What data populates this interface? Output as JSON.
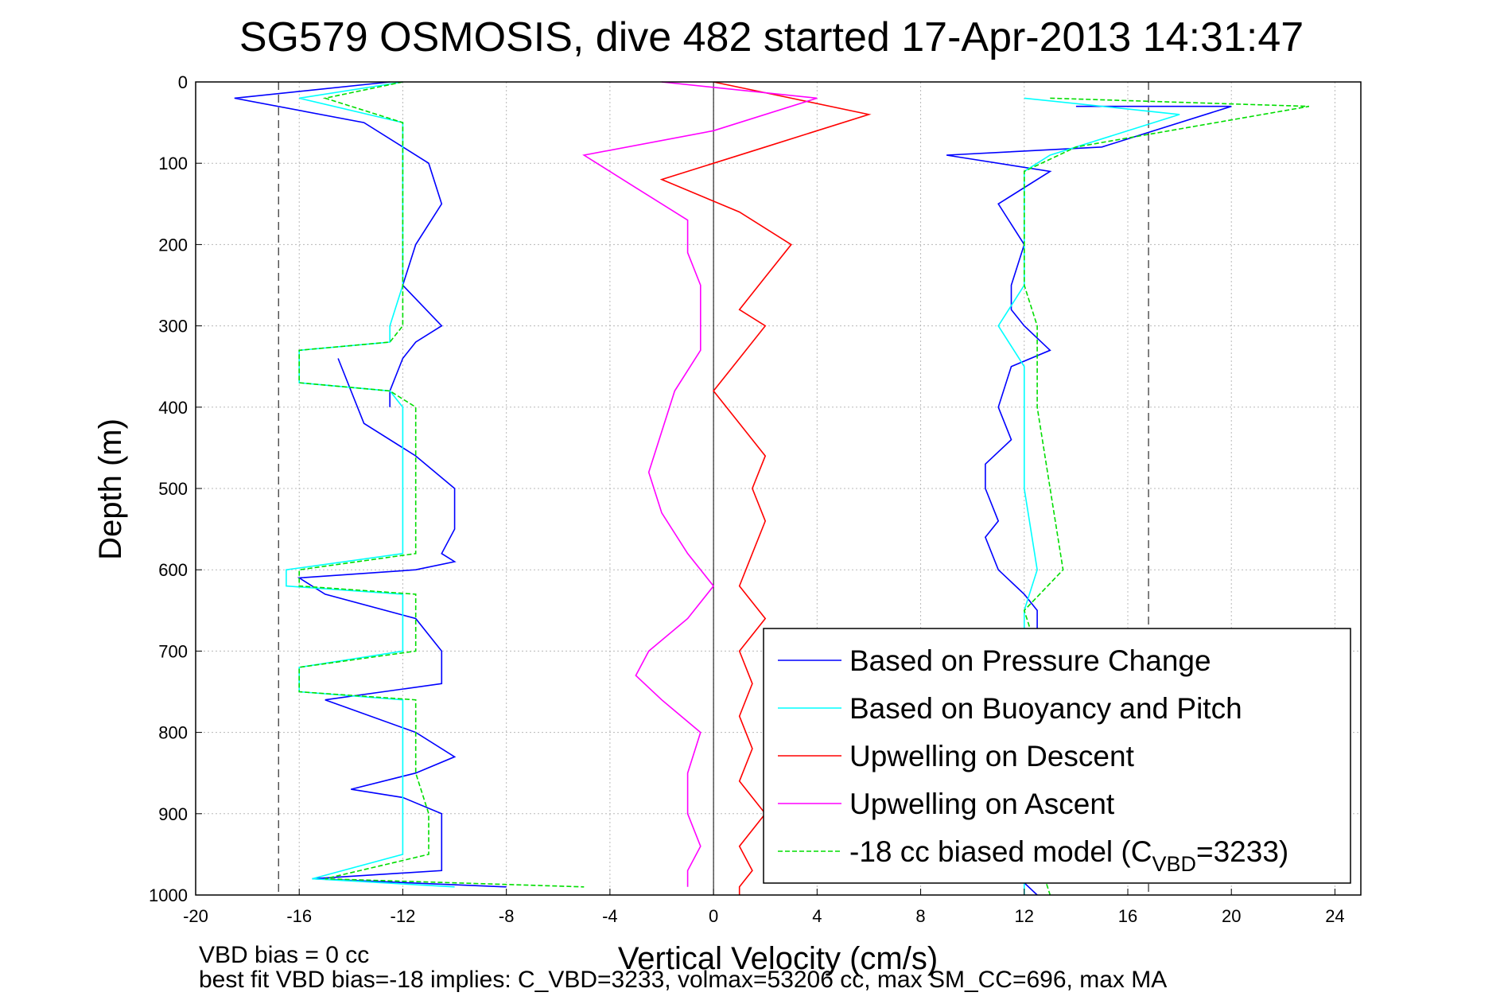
{
  "chart_data": {
    "type": "line",
    "title": "SG579 OSMOSIS, dive 482 started 17-Apr-2013 14:31:47",
    "xlabel": "Vertical Velocity (cm/s)",
    "ylabel": "Depth (m)",
    "xlim": [
      -20,
      25
    ],
    "ylim": [
      0,
      1000
    ],
    "y_reversed": true,
    "grid": true,
    "x_ticks": [
      -20,
      -16,
      -12,
      -8,
      -4,
      0,
      4,
      8,
      12,
      16,
      20,
      24
    ],
    "y_ticks": [
      0,
      100,
      200,
      300,
      400,
      500,
      600,
      700,
      800,
      900,
      1000
    ],
    "reference_lines_x": [
      -16.8,
      0,
      16.8
    ],
    "legend_position": "bottom-right",
    "legend": [
      {
        "text": "Based on Pressure Change",
        "color": "#0000ff",
        "dashed": false
      },
      {
        "text": "Based on Buoyancy and Pitch",
        "color": "#00ffff",
        "dashed": false
      },
      {
        "text": "Upwelling on Descent",
        "color": "#ff0000",
        "dashed": false
      },
      {
        "text": "Upwelling on Ascent",
        "color": "#ff00ff",
        "dashed": false
      },
      {
        "text": "-18 cc biased model (C",
        "sub": "VBD",
        "tail": "=3233)",
        "color": "#00dd00",
        "dashed": true
      }
    ],
    "series": [
      {
        "name": "Based on Pressure Change",
        "color": "#0000ff",
        "dashed": false,
        "x": [
          -12.5,
          -18.5,
          -13.5,
          -11,
          -10.5,
          -11.5,
          -12,
          -10.5,
          -11.5,
          -12,
          -12.5,
          -12.5,
          -14.5,
          -13.5,
          -11.5,
          -10,
          -10,
          -10.5,
          -10,
          -11.5,
          -16,
          -15,
          -11.5,
          -10.5,
          -10.5,
          -10.5,
          -15,
          -11.5,
          -10,
          -11.5,
          -14,
          -12,
          -10.5,
          -10.5,
          -10.5,
          -15.5,
          -8,
          14,
          20,
          15,
          9,
          13,
          11,
          12,
          11.5,
          11.5,
          12,
          13,
          11.5,
          11,
          11.5,
          10.5,
          10.5,
          11,
          10.5,
          11,
          12,
          12.5,
          12.5,
          12,
          12,
          12.5,
          12,
          12,
          12,
          12,
          12,
          12.5
        ],
        "y": [
          0,
          20,
          50,
          100,
          150,
          200,
          250,
          300,
          320,
          340,
          380,
          400,
          340,
          420,
          460,
          500,
          550,
          580,
          590,
          600,
          610,
          630,
          660,
          700,
          720,
          740,
          760,
          800,
          830,
          850,
          870,
          880,
          900,
          940,
          970,
          980,
          990,
          30,
          30,
          80,
          90,
          110,
          150,
          200,
          250,
          280,
          300,
          330,
          350,
          400,
          440,
          470,
          500,
          540,
          560,
          600,
          630,
          650,
          700,
          750,
          800,
          850,
          880,
          920,
          950,
          970,
          985,
          1000
        ]
      },
      {
        "name": "Based on Buoyancy and Pitch",
        "color": "#00ffff",
        "dashed": false,
        "x": [
          -12,
          -16,
          -12,
          -12,
          -12,
          -12,
          -12.5,
          -12.5,
          -16,
          -16,
          -12.5,
          -12,
          -12,
          -12,
          -12,
          -12,
          -16.5,
          -16.5,
          -12,
          -12,
          -12,
          -16,
          -16,
          -12,
          -12,
          -12,
          -12,
          -12,
          -15.5,
          -10,
          12,
          18,
          13,
          12,
          12,
          12,
          12,
          11,
          12,
          12,
          12,
          12.5,
          12,
          12,
          12,
          12,
          12,
          12
        ],
        "y": [
          0,
          20,
          50,
          100,
          200,
          250,
          300,
          320,
          330,
          370,
          380,
          400,
          450,
          500,
          550,
          580,
          600,
          620,
          630,
          650,
          700,
          720,
          750,
          760,
          800,
          850,
          900,
          950,
          980,
          990,
          20,
          40,
          90,
          110,
          150,
          200,
          250,
          300,
          350,
          400,
          500,
          600,
          650,
          700,
          800,
          900,
          950,
          1000
        ]
      },
      {
        "name": "Upwelling on Descent",
        "color": "#ff0000",
        "dashed": false,
        "x": [
          0,
          3,
          6,
          2,
          -2,
          1,
          3,
          2,
          1,
          2,
          1,
          0,
          1,
          2,
          1.5,
          2,
          1.5,
          1,
          2,
          1,
          1.5,
          1,
          1.5,
          1,
          2,
          1,
          1.5,
          1,
          1,
          1
        ],
        "y": [
          0,
          20,
          40,
          80,
          120,
          160,
          200,
          240,
          280,
          300,
          340,
          380,
          420,
          460,
          500,
          540,
          580,
          620,
          660,
          700,
          740,
          780,
          820,
          860,
          900,
          940,
          970,
          990,
          995,
          1000
        ]
      },
      {
        "name": "Upwelling on Ascent",
        "color": "#ff00ff",
        "dashed": false,
        "x": [
          -2,
          4,
          0,
          -5,
          -3,
          -1,
          -1,
          -0.5,
          -0.5,
          -0.5,
          -1.5,
          -2,
          -2.5,
          -2,
          -1,
          0,
          -1,
          -2.5,
          -3,
          -2,
          -0.5,
          -1,
          -1,
          -0.5,
          -1,
          -1
        ],
        "y": [
          0,
          20,
          60,
          90,
          130,
          170,
          210,
          250,
          290,
          330,
          380,
          430,
          480,
          530,
          580,
          620,
          660,
          700,
          730,
          760,
          800,
          850,
          900,
          940,
          970,
          990
        ]
      },
      {
        "name": "-18 cc biased model (CVBD=3233)",
        "color": "#00dd00",
        "dashed": true,
        "x": [
          -12,
          -15,
          -12,
          -12,
          -12,
          -12,
          -12,
          -12.5,
          -16,
          -16,
          -12.5,
          -11.5,
          -11.5,
          -11.5,
          -11.5,
          -11.5,
          -16,
          -16,
          -11.5,
          -11.5,
          -11.5,
          -16,
          -16,
          -11.5,
          -11.5,
          -11.5,
          -11,
          -11,
          -15,
          -5,
          13,
          23,
          14,
          12,
          12,
          12,
          12,
          12.5,
          12.5,
          12.5,
          13,
          13.5,
          12,
          12.5,
          12.5,
          12.5,
          12.5,
          13
        ],
        "y": [
          0,
          20,
          50,
          100,
          200,
          250,
          300,
          320,
          330,
          370,
          380,
          400,
          450,
          500,
          550,
          580,
          600,
          620,
          630,
          650,
          700,
          720,
          750,
          760,
          800,
          850,
          900,
          950,
          980,
          990,
          20,
          30,
          80,
          110,
          150,
          200,
          250,
          300,
          350,
          400,
          500,
          600,
          650,
          700,
          800,
          900,
          950,
          1000
        ]
      }
    ],
    "footnotes": [
      "VBD bias = 0 cc",
      "best fit VBD bias=-18 implies: C_VBD=3233, volmax=53206 cc, max SM_CC=696, max MA"
    ]
  }
}
